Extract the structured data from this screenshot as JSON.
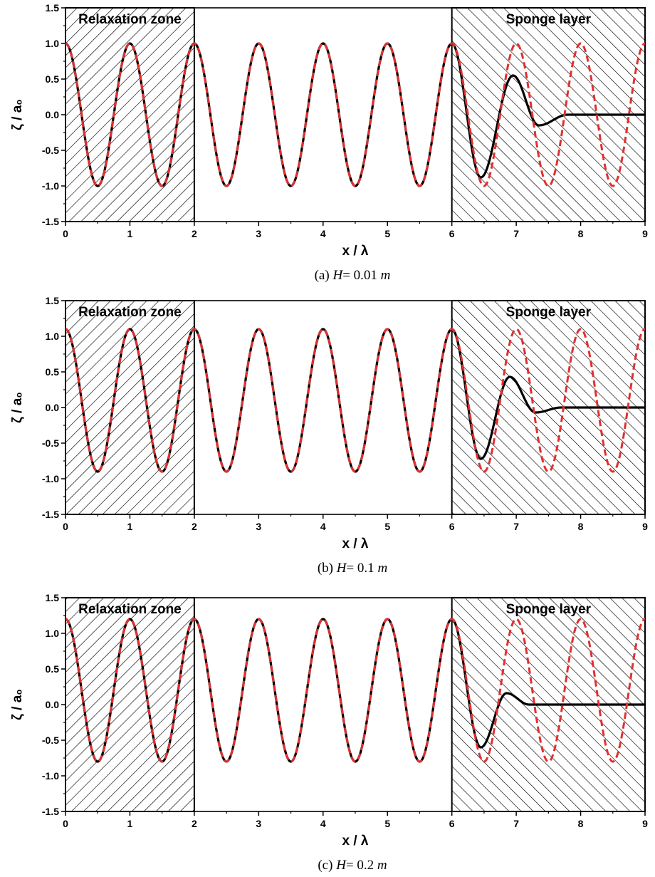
{
  "chart_data": [
    {
      "type": "line",
      "caption": {
        "prefix": "(a) ",
        "var": "H",
        "eq": "= 0.01 ",
        "unit": "m"
      },
      "xlabel": "x / λ",
      "ylabel": "ζ / a₀",
      "xlim": [
        0,
        9
      ],
      "ylim": [
        -1.5,
        1.5
      ],
      "xticks": [
        "0",
        "1",
        "2",
        "3",
        "4",
        "5",
        "6",
        "7",
        "8",
        "9"
      ],
      "yticks": [
        "-1.5",
        "-1.0",
        "-0.5",
        "0.0",
        "0.5",
        "1.0",
        "1.5"
      ],
      "zones": [
        {
          "label": "Relaxation zone",
          "x_range": [
            0,
            2
          ]
        },
        {
          "label": "Sponge layer",
          "x_range": [
            6,
            9
          ]
        }
      ],
      "crest": 1.0,
      "trough": -1.0,
      "series": [
        {
          "style": "solid",
          "color": "#000000",
          "x": [
            6.0,
            6.45,
            6.95,
            7.35,
            7.8,
            9.0
          ],
          "y": [
            1.0,
            -0.88,
            0.55,
            -0.15,
            0.0,
            0.0
          ]
        },
        {
          "style": "dashed",
          "color": "#e03030",
          "x": [
            6.0,
            6.5,
            7.0,
            7.5,
            8.0,
            8.5,
            9.0
          ],
          "y": [
            1.0,
            -1.0,
            1.0,
            -1.0,
            1.0,
            -1.0,
            1.0
          ]
        }
      ]
    },
    {
      "type": "line",
      "caption": {
        "prefix": "(b) ",
        "var": "H",
        "eq": "= 0.1 ",
        "unit": "m"
      },
      "xlabel": "x / λ",
      "ylabel": "ζ / a₀",
      "xlim": [
        0,
        9
      ],
      "ylim": [
        -1.5,
        1.5
      ],
      "xticks": [
        "0",
        "1",
        "2",
        "3",
        "4",
        "5",
        "6",
        "7",
        "8",
        "9"
      ],
      "yticks": [
        "-1.5",
        "-1.0",
        "-0.5",
        "0.0",
        "0.5",
        "1.0",
        "1.5"
      ],
      "zones": [
        {
          "label": "Relaxation zone",
          "x_range": [
            0,
            2
          ]
        },
        {
          "label": "Sponge layer",
          "x_range": [
            6,
            9
          ]
        }
      ],
      "crest": 1.1,
      "trough": -0.9,
      "series": [
        {
          "style": "solid",
          "color": "#000000",
          "x": [
            6.0,
            6.45,
            6.9,
            7.3,
            7.7,
            9.0
          ],
          "y": [
            1.1,
            -0.72,
            0.43,
            -0.07,
            0.0,
            0.0
          ]
        },
        {
          "style": "dashed",
          "color": "#e03030",
          "x": [
            6.0,
            6.5,
            7.0,
            7.5,
            8.0,
            8.5,
            9.0
          ],
          "y": [
            1.1,
            -0.9,
            1.1,
            -0.9,
            1.1,
            -0.9,
            1.1
          ]
        }
      ]
    },
    {
      "type": "line",
      "caption": {
        "prefix": "(c) ",
        "var": "H",
        "eq": "= 0.2 ",
        "unit": "m"
      },
      "xlabel": "x / λ",
      "ylabel": "ζ / a₀",
      "xlim": [
        0,
        9
      ],
      "ylim": [
        -1.5,
        1.5
      ],
      "xticks": [
        "0",
        "1",
        "2",
        "3",
        "4",
        "5",
        "6",
        "7",
        "8",
        "9"
      ],
      "yticks": [
        "-1.5",
        "-1.0",
        "-0.5",
        "0.0",
        "0.5",
        "1.0",
        "1.5"
      ],
      "zones": [
        {
          "label": "Relaxation zone",
          "x_range": [
            0,
            2
          ]
        },
        {
          "label": "Sponge layer",
          "x_range": [
            6,
            9
          ]
        }
      ],
      "crest": 1.2,
      "trough": -0.8,
      "series": [
        {
          "style": "solid",
          "color": "#000000",
          "x": [
            6.0,
            6.45,
            6.85,
            7.2,
            9.0
          ],
          "y": [
            1.2,
            -0.6,
            0.16,
            0.0,
            0.0
          ]
        },
        {
          "style": "dashed",
          "color": "#e03030",
          "x": [
            6.0,
            6.5,
            7.0,
            7.5,
            8.0,
            8.5,
            9.0
          ],
          "y": [
            1.2,
            -0.8,
            1.2,
            -0.8,
            1.2,
            -0.8,
            1.2
          ]
        }
      ]
    }
  ]
}
